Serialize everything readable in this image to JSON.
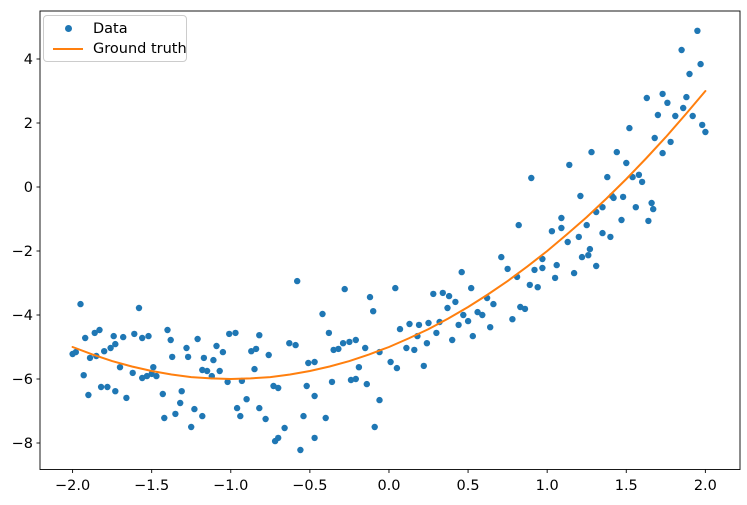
{
  "chart_data": {
    "type": "scatter",
    "background_color": "#ffffff",
    "spine_color": "#000000",
    "grid": false,
    "legend": {
      "position": "upper left",
      "items": [
        {
          "label": "Data",
          "marker": "point",
          "color": "#1f77b4"
        },
        {
          "label": "Ground truth",
          "marker": "line",
          "color": "#ff7f0e"
        }
      ]
    },
    "axes": {
      "xlim": [
        -2.206,
        2.219
      ],
      "ylim": [
        -8.828,
        5.5
      ],
      "x_ticks": {
        "values": [
          -2.0,
          -1.5,
          -1.0,
          -0.5,
          0.0,
          0.5,
          1.0,
          1.5,
          2.0
        ],
        "labels": [
          "−2.0",
          "−1.5",
          "−1.0",
          "−0.5",
          "0.0",
          "0.5",
          "1.0",
          "1.5",
          "2.0"
        ]
      },
      "y_ticks": {
        "values": [
          -8,
          -6,
          -4,
          -2,
          0,
          2,
          4
        ],
        "labels": [
          "−8",
          "−6",
          "−4",
          "−2",
          "0",
          "2",
          "4"
        ]
      }
    },
    "series": [
      {
        "name": "Data",
        "type": "scatter",
        "color": "#1f77b4",
        "marker_size_px": 6.4,
        "points": [
          [
            -1.95,
            -3.66
          ],
          [
            -1.58,
            -3.78
          ],
          [
            -1.92,
            -4.72
          ],
          [
            -1.86,
            -4.56
          ],
          [
            -1.83,
            -4.47
          ],
          [
            -1.74,
            -4.66
          ],
          [
            -1.68,
            -4.69
          ],
          [
            -1.61,
            -4.59
          ],
          [
            -1.56,
            -4.72
          ],
          [
            -1.52,
            -4.66
          ],
          [
            -1.4,
            -4.47
          ],
          [
            -1.38,
            -4.78
          ],
          [
            -2.0,
            -5.22
          ],
          [
            -1.98,
            -5.16
          ],
          [
            -1.89,
            -5.34
          ],
          [
            -1.85,
            -5.28
          ],
          [
            -1.8,
            -5.13
          ],
          [
            -1.76,
            -5.03
          ],
          [
            -1.73,
            -4.91
          ],
          [
            -1.37,
            -5.31
          ],
          [
            -1.27,
            -5.31
          ],
          [
            -1.28,
            -5.03
          ],
          [
            -1.21,
            -4.75
          ],
          [
            -1.17,
            -5.34
          ],
          [
            -1.11,
            -5.41
          ],
          [
            -1.09,
            -4.97
          ],
          [
            -1.7,
            -5.63
          ],
          [
            -1.62,
            -5.81
          ],
          [
            -1.56,
            -5.97
          ],
          [
            -1.53,
            -5.91
          ],
          [
            -1.5,
            -5.84
          ],
          [
            -1.47,
            -5.91
          ],
          [
            -1.49,
            -5.63
          ],
          [
            -1.93,
            -5.88
          ],
          [
            -1.9,
            -6.5
          ],
          [
            -1.82,
            -6.25
          ],
          [
            -1.78,
            -6.25
          ],
          [
            -1.73,
            -6.38
          ],
          [
            -1.66,
            -6.59
          ],
          [
            -1.43,
            -6.47
          ],
          [
            -1.31,
            -6.38
          ],
          [
            -1.32,
            -6.75
          ],
          [
            -1.35,
            -7.09
          ],
          [
            -1.42,
            -7.22
          ],
          [
            -1.23,
            -6.94
          ],
          [
            -1.18,
            -7.16
          ],
          [
            -1.25,
            -7.5
          ],
          [
            -1.18,
            -5.72
          ],
          [
            -1.15,
            -5.75
          ],
          [
            -1.12,
            -5.91
          ],
          [
            -1.07,
            -5.75
          ],
          [
            -0.58,
            -2.94
          ],
          [
            -0.28,
            -3.19
          ],
          [
            -0.12,
            -3.44
          ],
          [
            -0.1,
            -3.88
          ],
          [
            -0.42,
            -3.97
          ],
          [
            -0.38,
            -4.56
          ],
          [
            -1.01,
            -4.59
          ],
          [
            -0.97,
            -4.56
          ],
          [
            -0.82,
            -4.63
          ],
          [
            -1.05,
            -5.16
          ],
          [
            -0.87,
            -5.13
          ],
          [
            -0.84,
            -5.06
          ],
          [
            -0.76,
            -5.25
          ],
          [
            -0.63,
            -4.88
          ],
          [
            -0.59,
            -4.94
          ],
          [
            -0.35,
            -5.09
          ],
          [
            -0.32,
            -5.06
          ],
          [
            -0.29,
            -4.88
          ],
          [
            -0.25,
            -4.84
          ],
          [
            -0.21,
            -4.78
          ],
          [
            -0.15,
            -5.03
          ],
          [
            -0.06,
            -5.16
          ],
          [
            -0.51,
            -5.5
          ],
          [
            -0.47,
            -5.47
          ],
          [
            -0.85,
            -5.69
          ],
          [
            -1.02,
            -6.09
          ],
          [
            -0.93,
            -6.06
          ],
          [
            -0.73,
            -6.22
          ],
          [
            -0.7,
            -6.28
          ],
          [
            -0.52,
            -6.22
          ],
          [
            -0.47,
            -6.53
          ],
          [
            -0.36,
            -6.09
          ],
          [
            -0.24,
            -6.03
          ],
          [
            -0.21,
            -6.0
          ],
          [
            -0.14,
            -6.16
          ],
          [
            -0.19,
            -5.63
          ],
          [
            0.01,
            -5.47
          ],
          [
            0.05,
            -5.66
          ],
          [
            -0.9,
            -6.63
          ],
          [
            -0.96,
            -6.91
          ],
          [
            -0.94,
            -7.16
          ],
          [
            -0.82,
            -6.91
          ],
          [
            -0.78,
            -7.25
          ],
          [
            -0.66,
            -7.53
          ],
          [
            -0.54,
            -7.16
          ],
          [
            -0.4,
            -7.22
          ],
          [
            -0.09,
            -7.5
          ],
          [
            -0.06,
            -6.66
          ],
          [
            -0.72,
            -7.94
          ],
          [
            -0.7,
            -7.84
          ],
          [
            -0.47,
            -7.84
          ],
          [
            -0.56,
            -8.22
          ],
          [
            0.71,
            -2.19
          ],
          [
            0.97,
            -2.25
          ],
          [
            1.06,
            -2.44
          ],
          [
            0.46,
            -2.66
          ],
          [
            0.75,
            -2.56
          ],
          [
            0.92,
            -2.59
          ],
          [
            0.97,
            -2.53
          ],
          [
            1.05,
            -2.84
          ],
          [
            0.81,
            -2.81
          ],
          [
            0.04,
            -3.16
          ],
          [
            0.28,
            -3.34
          ],
          [
            0.34,
            -3.31
          ],
          [
            0.38,
            -3.41
          ],
          [
            0.52,
            -3.16
          ],
          [
            0.89,
            -3.06
          ],
          [
            0.94,
            -3.13
          ],
          [
            0.62,
            -3.47
          ],
          [
            0.42,
            -3.59
          ],
          [
            0.66,
            -3.66
          ],
          [
            0.37,
            -3.78
          ],
          [
            0.83,
            -3.75
          ],
          [
            0.86,
            -3.81
          ],
          [
            0.47,
            -4.0
          ],
          [
            0.56,
            -3.91
          ],
          [
            0.59,
            -4.0
          ],
          [
            0.5,
            -4.19
          ],
          [
            0.78,
            -4.13
          ],
          [
            0.13,
            -4.28
          ],
          [
            0.19,
            -4.31
          ],
          [
            0.25,
            -4.25
          ],
          [
            0.07,
            -4.44
          ],
          [
            0.32,
            -4.22
          ],
          [
            0.44,
            -4.31
          ],
          [
            0.64,
            -4.38
          ],
          [
            0.18,
            -4.66
          ],
          [
            0.3,
            -4.56
          ],
          [
            0.4,
            -4.78
          ],
          [
            0.53,
            -4.66
          ],
          [
            0.11,
            -5.03
          ],
          [
            0.16,
            -5.09
          ],
          [
            0.24,
            -4.88
          ],
          [
            0.22,
            -5.59
          ],
          [
            0.9,
            0.28
          ],
          [
            1.14,
            0.69
          ],
          [
            0.82,
            -1.19
          ],
          [
            1.09,
            -0.97
          ],
          [
            1.03,
            -1.38
          ],
          [
            1.22,
            -2.19
          ],
          [
            1.26,
            -2.13
          ],
          [
            1.31,
            -2.47
          ],
          [
            1.17,
            -2.69
          ],
          [
            1.95,
            4.88
          ],
          [
            1.85,
            4.28
          ],
          [
            1.97,
            3.84
          ],
          [
            1.9,
            3.53
          ],
          [
            1.63,
            2.78
          ],
          [
            1.73,
            2.91
          ],
          [
            1.76,
            2.63
          ],
          [
            1.88,
            2.81
          ],
          [
            1.86,
            2.47
          ],
          [
            1.7,
            2.25
          ],
          [
            1.81,
            2.22
          ],
          [
            1.92,
            2.22
          ],
          [
            1.98,
            1.94
          ],
          [
            2.0,
            1.72
          ],
          [
            1.52,
            1.84
          ],
          [
            1.68,
            1.53
          ],
          [
            1.78,
            1.41
          ],
          [
            1.44,
            1.09
          ],
          [
            1.73,
            1.06
          ],
          [
            1.5,
            0.75
          ],
          [
            1.28,
            1.09
          ],
          [
            1.38,
            0.31
          ],
          [
            1.54,
            0.31
          ],
          [
            1.58,
            0.38
          ],
          [
            1.6,
            0.16
          ],
          [
            1.41,
            -0.28
          ],
          [
            1.42,
            -0.34
          ],
          [
            1.48,
            -0.31
          ],
          [
            1.21,
            -0.28
          ],
          [
            1.35,
            -0.63
          ],
          [
            1.56,
            -0.63
          ],
          [
            1.66,
            -0.5
          ],
          [
            1.67,
            -0.69
          ],
          [
            1.47,
            -1.03
          ],
          [
            1.64,
            -1.06
          ],
          [
            1.31,
            -0.78
          ],
          [
            1.25,
            -1.19
          ],
          [
            1.09,
            -1.28
          ],
          [
            1.13,
            -1.72
          ],
          [
            1.2,
            -1.56
          ],
          [
            1.27,
            -1.94
          ],
          [
            1.35,
            -1.44
          ],
          [
            1.4,
            -1.56
          ]
        ]
      },
      {
        "name": "Ground truth",
        "type": "line",
        "color": "#ff7f0e",
        "line_width": 2,
        "equation": "y = x^2 + 2x - 5",
        "x_range": [
          -2,
          2
        ],
        "points": [
          [
            -2.0,
            -5.0
          ],
          [
            -1.875,
            -5.23
          ],
          [
            -1.75,
            -5.44
          ],
          [
            -1.625,
            -5.61
          ],
          [
            -1.5,
            -5.75
          ],
          [
            -1.375,
            -5.86
          ],
          [
            -1.25,
            -5.94
          ],
          [
            -1.125,
            -5.98
          ],
          [
            -1.0,
            -6.0
          ],
          [
            -0.875,
            -5.98
          ],
          [
            -0.75,
            -5.94
          ],
          [
            -0.625,
            -5.86
          ],
          [
            -0.5,
            -5.75
          ],
          [
            -0.375,
            -5.61
          ],
          [
            -0.25,
            -5.44
          ],
          [
            -0.125,
            -5.23
          ],
          [
            0.0,
            -5.0
          ],
          [
            0.125,
            -4.73
          ],
          [
            0.25,
            -4.44
          ],
          [
            0.375,
            -4.11
          ],
          [
            0.5,
            -3.75
          ],
          [
            0.625,
            -3.36
          ],
          [
            0.75,
            -2.94
          ],
          [
            0.875,
            -2.48
          ],
          [
            1.0,
            -2.0
          ],
          [
            1.125,
            -1.48
          ],
          [
            1.25,
            -0.94
          ],
          [
            1.375,
            -0.36
          ],
          [
            1.5,
            0.25
          ],
          [
            1.625,
            0.89
          ],
          [
            1.75,
            1.56
          ],
          [
            1.875,
            2.27
          ],
          [
            2.0,
            3.0
          ]
        ]
      }
    ]
  }
}
